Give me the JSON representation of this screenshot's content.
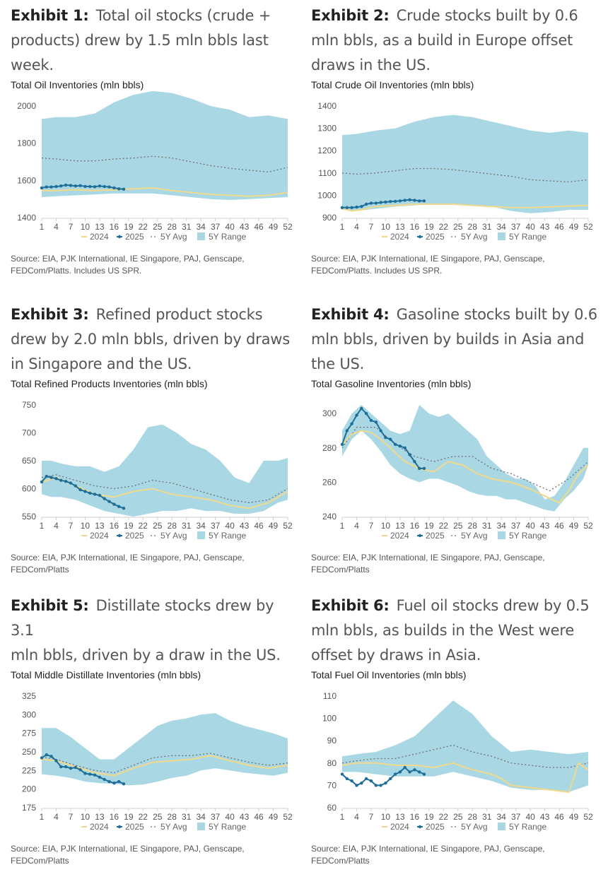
{
  "legend": {
    "s2024": "2024",
    "s2025": "2025",
    "avg": "5Y Avg",
    "range": "5Y Range"
  },
  "colors": {
    "range": "#a9d8e4",
    "avg": "#707070",
    "s2024": "#f0d98a",
    "s2025": "#1f6e98"
  },
  "x_ticks": [
    1,
    4,
    7,
    10,
    13,
    16,
    19,
    22,
    25,
    28,
    31,
    34,
    37,
    40,
    43,
    46,
    49,
    52
  ],
  "exhibits": [
    {
      "label": "Exhibit 1:",
      "title_lines": [
        "Total oil stocks (crude +",
        "products) drew by 1.5 mln bbls last",
        "week."
      ],
      "chart_title": "Total Oil Inventories (mln bbls)",
      "source_lines": [
        "Source: EIA, PJK International, IE Singapore, PAJ, Genscape,",
        "FEDCom/Platts. Includes US SPR."
      ]
    },
    {
      "label": "Exhibit 2:",
      "title_lines": [
        "Crude stocks built by 0.6",
        "mln bbls, as a build in Europe offset",
        "draws in the US."
      ],
      "chart_title": "Total Crude Oil Inventories (mln bbls)",
      "source_lines": [
        "Source: EIA, PJK International, IE Singapore, PAJ, Genscape,",
        "FEDCom/Platts. Includes US SPR."
      ]
    },
    {
      "label": "Exhibit 3:",
      "title_lines": [
        "Refined product stocks",
        "drew by 2.0 mln bbls, driven by draws",
        "in Singapore and the US."
      ],
      "chart_title": "Total Refined Products Inventories (mln bbls)",
      "source_lines": [
        "Source: EIA, PJK International, IE Singapore, PAJ, Genscape,",
        "FEDCom/Platts"
      ]
    },
    {
      "label": "Exhibit 4:",
      "title_lines": [
        "Gasoline stocks built by 0.6",
        "mln bbls, driven by builds in Asia and",
        "the US."
      ],
      "chart_title": "Total Gasoline Inventories (mln bbls)",
      "source_lines": [
        "Source: EIA, PJK International, IE Singapore, PAJ, Genscape,",
        "FEDCom/Platts"
      ]
    },
    {
      "label": "Exhibit 5:",
      "title_lines": [
        "Distillate stocks drew by 3.1",
        "mln bbls, driven by a draw in the US."
      ],
      "chart_title": "Total Middle Distillate Inventories (mln bbls)",
      "source_lines": [
        "Source: EIA, PJK International, IE Singapore, PAJ, Genscape,",
        "FEDCom/Platts"
      ]
    },
    {
      "label": "Exhibit 6:",
      "title_lines": [
        "Fuel oil stocks drew by 0.5",
        "mln bbls, as builds in the West were",
        "offset by draws in Asia."
      ],
      "chart_title": "Total Fuel Oil Inventories (mln bbls)",
      "source_lines": [
        "Source: EIA, PJK International, IE Singapore, PAJ, Genscape,",
        "FEDCom/Platts"
      ]
    }
  ],
  "chart_data": [
    {
      "type": "area",
      "title": "Total Oil Inventories (mln bbls)",
      "ylim": [
        1400,
        2000
      ],
      "yticks": [
        1400,
        1600,
        1800,
        2000
      ],
      "range_x": [
        1,
        4,
        8,
        12,
        16,
        20,
        24,
        28,
        32,
        36,
        40,
        44,
        48,
        52
      ],
      "range_min": [
        1510,
        1515,
        1520,
        1525,
        1530,
        1530,
        1530,
        1520,
        1510,
        1500,
        1495,
        1500,
        1505,
        1510
      ],
      "range_max": [
        1930,
        1940,
        1940,
        1960,
        2020,
        2060,
        2080,
        2070,
        2040,
        2000,
        1980,
        1940,
        1950,
        1930
      ],
      "avg_x": [
        1,
        4,
        8,
        12,
        16,
        20,
        24,
        28,
        32,
        36,
        40,
        44,
        48,
        52
      ],
      "avg": [
        1720,
        1715,
        1705,
        1705,
        1715,
        1720,
        1730,
        1720,
        1700,
        1680,
        1665,
        1655,
        1645,
        1670
      ],
      "s2024_x": [
        1,
        4,
        8,
        12,
        16,
        20,
        24,
        28,
        32,
        36,
        40,
        44,
        48,
        52
      ],
      "s2024": [
        1545,
        1545,
        1550,
        1545,
        1550,
        1555,
        1560,
        1545,
        1535,
        1525,
        1520,
        1515,
        1520,
        1535
      ],
      "s2025_x": [
        1,
        2,
        3,
        4,
        5,
        6,
        7,
        8,
        9,
        10,
        11,
        12,
        13,
        14,
        15,
        16,
        17,
        18
      ],
      "s2025": [
        1560,
        1565,
        1565,
        1567,
        1570,
        1575,
        1573,
        1570,
        1572,
        1568,
        1567,
        1566,
        1570,
        1567,
        1565,
        1560,
        1555,
        1553
      ]
    },
    {
      "type": "area",
      "title": "Total Crude Oil Inventories (mln bbls)",
      "ylim": [
        900,
        1400
      ],
      "yticks": [
        900,
        1000,
        1100,
        1200,
        1300,
        1400
      ],
      "range_x": [
        1,
        4,
        8,
        12,
        16,
        20,
        24,
        28,
        32,
        36,
        40,
        44,
        48,
        52
      ],
      "range_min": [
        935,
        930,
        940,
        950,
        955,
        960,
        960,
        955,
        950,
        930,
        920,
        925,
        935,
        935
      ],
      "range_max": [
        1270,
        1275,
        1290,
        1300,
        1330,
        1350,
        1360,
        1350,
        1330,
        1310,
        1290,
        1280,
        1290,
        1280
      ],
      "avg_x": [
        1,
        4,
        8,
        12,
        16,
        20,
        24,
        28,
        32,
        36,
        40,
        44,
        48,
        52
      ],
      "avg": [
        1100,
        1095,
        1100,
        1110,
        1120,
        1120,
        1115,
        1105,
        1095,
        1085,
        1070,
        1065,
        1060,
        1070
      ],
      "s2024_x": [
        1,
        3,
        5,
        8,
        12,
        16,
        20,
        24,
        28,
        32,
        36,
        40,
        44,
        48,
        52
      ],
      "s2024": [
        940,
        930,
        935,
        950,
        955,
        960,
        960,
        960,
        955,
        950,
        945,
        945,
        948,
        952,
        955
      ],
      "s2025_x": [
        1,
        2,
        3,
        4,
        5,
        6,
        7,
        8,
        9,
        10,
        11,
        12,
        13,
        14,
        15,
        16,
        17,
        18
      ],
      "s2025": [
        945,
        945,
        945,
        947,
        950,
        960,
        965,
        965,
        968,
        970,
        972,
        973,
        975,
        978,
        980,
        978,
        975,
        975
      ]
    },
    {
      "type": "area",
      "title": "Total Refined Products Inventories (mln bbls)",
      "ylim": [
        550,
        750
      ],
      "yticks": [
        550,
        600,
        650,
        700,
        750
      ],
      "range_x": [
        1,
        3,
        5,
        8,
        11,
        14,
        17,
        20,
        23,
        26,
        29,
        32,
        35,
        38,
        41,
        44,
        47,
        50,
        52
      ],
      "range_min": [
        590,
        585,
        585,
        580,
        570,
        560,
        555,
        550,
        555,
        560,
        560,
        565,
        560,
        560,
        555,
        555,
        560,
        575,
        580
      ],
      "range_max": [
        650,
        650,
        645,
        640,
        640,
        630,
        640,
        670,
        710,
        715,
        700,
        680,
        670,
        650,
        620,
        610,
        650,
        650,
        655
      ],
      "avg_x": [
        1,
        4,
        8,
        12,
        16,
        20,
        24,
        28,
        32,
        36,
        40,
        44,
        48,
        52
      ],
      "avg": [
        620,
        625,
        615,
        605,
        600,
        605,
        615,
        610,
        600,
        590,
        580,
        575,
        580,
        600
      ],
      "s2024_x": [
        1,
        4,
        8,
        12,
        16,
        20,
        24,
        28,
        32,
        36,
        40,
        44,
        48,
        52
      ],
      "s2024": [
        612,
        620,
        605,
        590,
        585,
        595,
        600,
        590,
        585,
        580,
        570,
        565,
        575,
        595
      ],
      "s2025_x": [
        1,
        2,
        3,
        4,
        5,
        6,
        7,
        8,
        9,
        10,
        11,
        12,
        13,
        14,
        15,
        16,
        17,
        18
      ],
      "s2025": [
        612,
        622,
        620,
        618,
        615,
        613,
        610,
        605,
        598,
        595,
        592,
        590,
        588,
        582,
        577,
        572,
        568,
        565
      ]
    },
    {
      "type": "area",
      "title": "Total Gasoline Inventories (mln bbls)",
      "ylim": [
        240,
        305
      ],
      "yticks": [
        240,
        260,
        280,
        300
      ],
      "range_x": [
        1,
        3,
        5,
        7,
        9,
        11,
        13,
        15,
        17,
        19,
        21,
        23,
        25,
        27,
        29,
        31,
        33,
        35,
        37,
        39,
        41,
        43,
        45,
        47,
        49,
        51,
        52
      ],
      "range_min": [
        275,
        285,
        290,
        285,
        278,
        270,
        265,
        262,
        260,
        262,
        262,
        260,
        258,
        255,
        253,
        252,
        252,
        250,
        250,
        248,
        246,
        244,
        243,
        250,
        255,
        262,
        270
      ],
      "range_max": [
        290,
        300,
        305,
        300,
        295,
        290,
        288,
        290,
        305,
        300,
        298,
        300,
        295,
        290,
        285,
        275,
        270,
        265,
        262,
        262,
        258,
        250,
        252,
        260,
        270,
        280,
        280
      ],
      "avg_x": [
        1,
        4,
        8,
        12,
        16,
        20,
        24,
        28,
        32,
        36,
        40,
        44,
        48,
        52
      ],
      "avg": [
        280,
        292,
        292,
        282,
        275,
        272,
        275,
        275,
        268,
        265,
        260,
        255,
        262,
        272
      ],
      "s2024_x": [
        1,
        3,
        5,
        7,
        9,
        11,
        14,
        17,
        20,
        23,
        26,
        29,
        32,
        36,
        40,
        43,
        46,
        48,
        50,
        52
      ],
      "s2024": [
        282,
        288,
        290,
        289,
        285,
        280,
        272,
        268,
        266,
        272,
        270,
        265,
        262,
        260,
        256,
        252,
        248,
        255,
        265,
        270
      ],
      "s2025_x": [
        1,
        2,
        3,
        4,
        5,
        6,
        7,
        8,
        9,
        10,
        11,
        12,
        13,
        14,
        15,
        16,
        17,
        18
      ],
      "s2025": [
        282,
        290,
        294,
        299,
        303,
        300,
        296,
        295,
        290,
        286,
        285,
        282,
        281,
        280,
        276,
        272,
        268,
        268
      ]
    },
    {
      "type": "area",
      "title": "Total Middle Distillate Inventories (mln bbls)",
      "ylim": [
        175,
        325
      ],
      "yticks": [
        175,
        200,
        225,
        250,
        275,
        300,
        325
      ],
      "range_x": [
        1,
        4,
        7,
        10,
        13,
        16,
        19,
        22,
        25,
        28,
        31,
        34,
        37,
        40,
        43,
        46,
        49,
        52
      ],
      "range_min": [
        220,
        218,
        215,
        210,
        208,
        207,
        205,
        206,
        210,
        215,
        218,
        225,
        228,
        225,
        222,
        220,
        218,
        222
      ],
      "range_max": [
        282,
        282,
        270,
        255,
        240,
        240,
        255,
        270,
        285,
        292,
        295,
        300,
        302,
        292,
        285,
        280,
        275,
        268
      ],
      "avg_x": [
        1,
        4,
        8,
        12,
        16,
        20,
        24,
        28,
        32,
        36,
        40,
        44,
        48,
        52
      ],
      "avg": [
        243,
        240,
        232,
        225,
        222,
        232,
        242,
        245,
        245,
        248,
        242,
        236,
        232,
        235
      ],
      "s2024_x": [
        1,
        4,
        8,
        12,
        16,
        20,
        24,
        28,
        32,
        36,
        40,
        44,
        48,
        52
      ],
      "s2024": [
        240,
        238,
        230,
        222,
        218,
        228,
        236,
        238,
        240,
        245,
        238,
        232,
        228,
        232
      ],
      "s2025_x": [
        1,
        2,
        3,
        4,
        5,
        6,
        7,
        8,
        9,
        10,
        11,
        12,
        13,
        14,
        15,
        16,
        17,
        18
      ],
      "s2025": [
        242,
        246,
        244,
        238,
        230,
        230,
        228,
        229,
        226,
        221,
        220,
        219,
        216,
        213,
        210,
        208,
        210,
        207
      ]
    },
    {
      "type": "area",
      "title": "Total Fuel Oil Inventories (mln bbls)",
      "ylim": [
        60,
        110
      ],
      "yticks": [
        60,
        70,
        80,
        90,
        100,
        110
      ],
      "range_x": [
        1,
        4,
        8,
        12,
        16,
        20,
        24,
        28,
        32,
        36,
        40,
        44,
        48,
        52
      ],
      "range_min": [
        76,
        76,
        75,
        74,
        74,
        74,
        76,
        74,
        72,
        69,
        68,
        68,
        67,
        70
      ],
      "range_max": [
        83,
        84,
        85,
        88,
        92,
        100,
        108,
        102,
        92,
        85,
        86,
        85,
        84,
        85
      ],
      "avg_x": [
        1,
        4,
        8,
        12,
        16,
        20,
        24,
        28,
        32,
        36,
        40,
        44,
        48,
        52
      ],
      "avg": [
        80,
        81,
        82,
        82,
        84,
        86,
        88,
        85,
        83,
        80,
        79,
        78,
        78,
        80
      ],
      "s2024_x": [
        1,
        4,
        8,
        12,
        16,
        20,
        24,
        28,
        32,
        34,
        36,
        40,
        44,
        48,
        50,
        52
      ],
      "s2024": [
        79,
        80,
        80,
        79,
        79,
        78,
        80,
        77,
        75,
        73,
        70,
        69,
        68,
        67,
        80,
        77
      ],
      "s2025_x": [
        1,
        2,
        3,
        4,
        5,
        6,
        7,
        8,
        9,
        10,
        11,
        12,
        13,
        14,
        15,
        16,
        17,
        18
      ],
      "s2025": [
        75,
        73,
        72,
        70,
        71,
        73,
        72,
        70,
        70,
        71,
        73,
        75,
        76,
        78,
        76,
        77,
        76,
        75
      ]
    }
  ]
}
